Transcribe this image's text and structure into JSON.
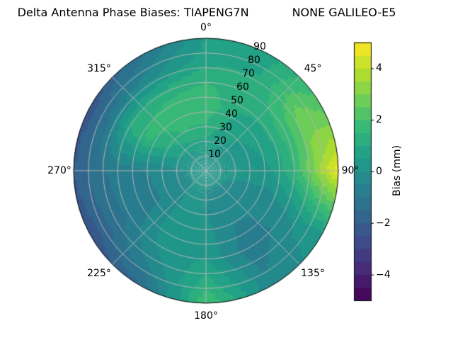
{
  "chart_data": {
    "type": "heatmap",
    "projection": "polar",
    "title": "Delta Antenna Phase Biases: TIAPENG7N            NONE GALILEO-E5",
    "theta_zero": "north",
    "theta_direction": "clockwise",
    "theta_tick_labels": [
      "0°",
      "45°",
      "90°",
      "135°",
      "180°",
      "225°",
      "270°",
      "315°"
    ],
    "r_tick_labels": [
      "10",
      "20",
      "30",
      "40",
      "50",
      "60",
      "70",
      "80",
      "90"
    ],
    "r_axis": {
      "min": 0,
      "max": 90,
      "label_angle_deg": 22.5
    },
    "colorbar": {
      "label": "Bias (mm)",
      "tick_labels": [
        "4",
        "2",
        "0",
        "−2",
        "−4"
      ],
      "tick_values": [
        4,
        2,
        0,
        -2,
        -4
      ],
      "vmin": -5,
      "vmax": 5,
      "colormap": "viridis",
      "level_step_mm": 0.5
    },
    "colormap_stops": [
      "#440154",
      "#482878",
      "#3e4989",
      "#31688e",
      "#26828e",
      "#1f9e89",
      "#35b779",
      "#6ece58",
      "#b5de2b",
      "#fde725"
    ],
    "grid_lines": {
      "color": "#b5b5b5",
      "theta_step_deg": 45,
      "r_step": 10
    },
    "grid": {
      "azimuth_deg": [
        0,
        30,
        60,
        90,
        120,
        150,
        180,
        210,
        240,
        270,
        300,
        330
      ],
      "zenith_deg": [
        0,
        15,
        30,
        45,
        60,
        75,
        90
      ],
      "bias_mm": [
        [
          0.3,
          0.3,
          0.3,
          0.3,
          0.3,
          0.3,
          0.3,
          0.3,
          0.3,
          0.3,
          0.3,
          0.3
        ],
        [
          0.6,
          0.4,
          0.2,
          0.1,
          0.0,
          -0.1,
          0.0,
          0.1,
          -0.1,
          0.0,
          0.3,
          0.5
        ],
        [
          1.4,
          0.7,
          0.4,
          0.2,
          -0.2,
          -0.3,
          0.0,
          0.2,
          -0.4,
          -0.3,
          1.0,
          1.5
        ],
        [
          1.9,
          1.0,
          0.8,
          0.5,
          -0.4,
          -0.6,
          0.2,
          0.4,
          -0.7,
          -0.6,
          1.6,
          1.9
        ],
        [
          1.5,
          1.2,
          1.8,
          1.5,
          -0.2,
          -0.9,
          0.5,
          0.2,
          -0.9,
          -0.8,
          1.0,
          1.2
        ],
        [
          0.8,
          1.0,
          2.8,
          3.2,
          0.2,
          -0.6,
          1.2,
          -0.4,
          -1.5,
          -1.2,
          -1.0,
          -0.3
        ],
        [
          0.5,
          0.8,
          2.2,
          4.8,
          0.3,
          -0.4,
          2.0,
          -1.5,
          -2.4,
          -2.0,
          -2.4,
          -1.2
        ]
      ]
    }
  }
}
